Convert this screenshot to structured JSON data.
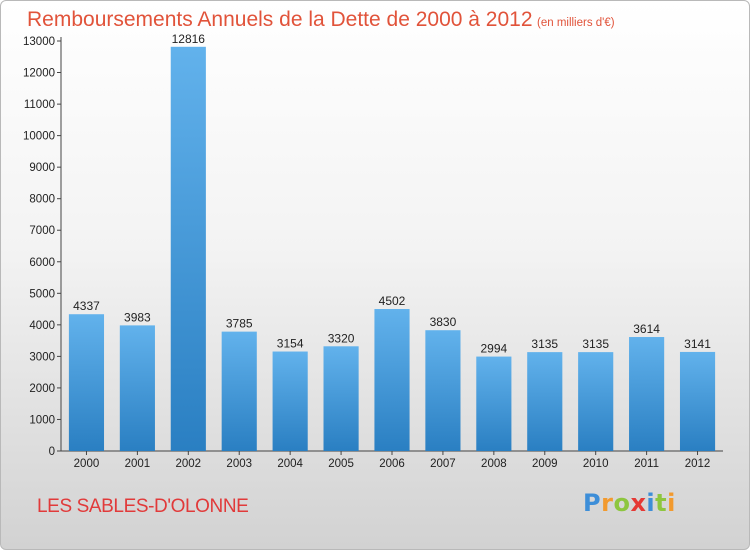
{
  "header": {
    "title": "Remboursements Annuels de la Dette de 2000 à 2012",
    "unit": "(en milliers d'€)"
  },
  "footer": {
    "town": "LES SABLES-D'OLONNE",
    "logo": {
      "p": "P",
      "r": "r",
      "o": "o",
      "x": "x",
      "i": "i",
      "t": "t",
      "i2": "i"
    }
  },
  "colors": {
    "bar_light": "#62b2ec",
    "bar_dark": "#2a7fc2",
    "title": "#e1533a",
    "town": "#e13a3a"
  },
  "chart_data": {
    "type": "bar",
    "categories": [
      "2000",
      "2001",
      "2002",
      "2003",
      "2004",
      "2005",
      "2006",
      "2007",
      "2008",
      "2009",
      "2010",
      "2011",
      "2012"
    ],
    "values": [
      4337,
      3983,
      12816,
      3785,
      3154,
      3320,
      4502,
      3830,
      2994,
      3135,
      3135,
      3614,
      3141
    ],
    "ylim": [
      0,
      13000
    ],
    "yticks": [
      0,
      1000,
      2000,
      3000,
      4000,
      5000,
      6000,
      7000,
      8000,
      9000,
      10000,
      11000,
      12000,
      13000
    ],
    "grid": false,
    "legend": "none"
  }
}
